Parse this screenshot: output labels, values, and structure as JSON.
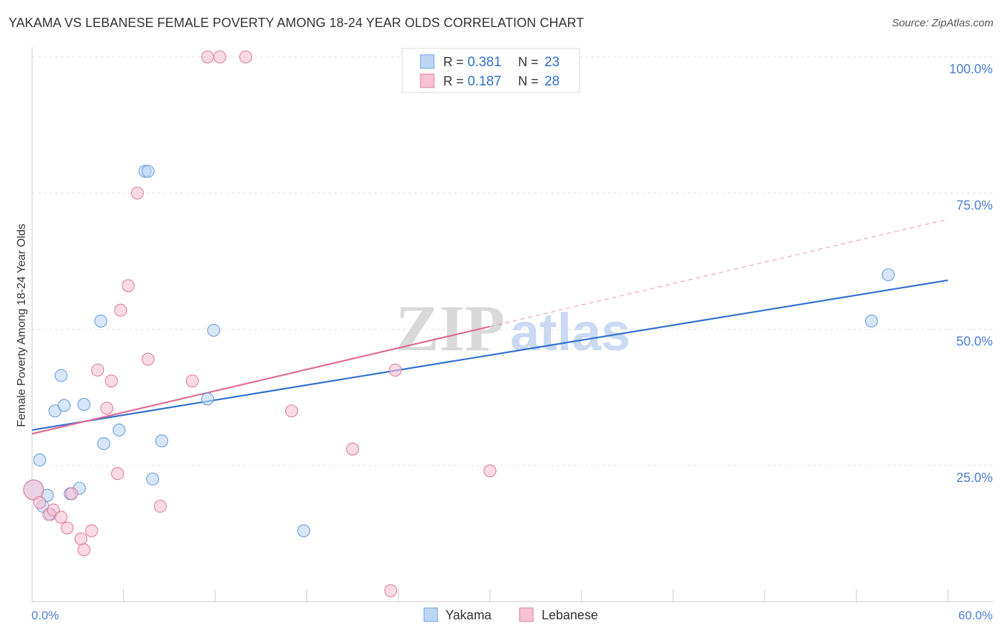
{
  "title": "YAKAMA VS LEBANESE FEMALE POVERTY AMONG 18-24 YEAR OLDS CORRELATION CHART",
  "source": "Source: ZipAtlas.com",
  "watermark": {
    "part1": "ZIP",
    "part2": "atlas"
  },
  "chart_data": {
    "type": "scatter",
    "title": "YAKAMA VS LEBANESE FEMALE POVERTY AMONG 18-24 YEAR OLDS CORRELATION CHART",
    "xlabel": "",
    "ylabel": "Female Poverty Among 18-24 Year Olds",
    "xlim": [
      0,
      60
    ],
    "ylim": [
      0,
      100
    ],
    "x_tick_labels": {
      "min": "0.0%",
      "max": "60.0%"
    },
    "y_ticks": [
      {
        "value": 25,
        "label": "25.0%"
      },
      {
        "value": 50,
        "label": "50.0%"
      },
      {
        "value": 75,
        "label": "75.0%"
      },
      {
        "value": 100,
        "label": "100.0%"
      }
    ],
    "grid": true,
    "legend": {
      "placement": "top-center",
      "r_label": "R =",
      "n_label": "N ="
    },
    "series": [
      {
        "name": "Yakama",
        "color": "#6a9fe0",
        "fill": "#bcd5f5",
        "line_color": "#2f6fd0",
        "R": "0.381",
        "N": "23",
        "trend": {
          "x0": 0,
          "y0": 31.5,
          "x1": 60,
          "y1": 59.0
        },
        "points": [
          [
            0.1,
            20.5
          ],
          [
            0.5,
            26.0
          ],
          [
            0.7,
            17.5
          ],
          [
            1.0,
            19.5
          ],
          [
            1.2,
            16.0
          ],
          [
            1.5,
            35.0
          ],
          [
            1.9,
            41.5
          ],
          [
            2.1,
            36.0
          ],
          [
            2.5,
            19.8
          ],
          [
            3.1,
            20.8
          ],
          [
            3.4,
            36.2
          ],
          [
            4.5,
            51.5
          ],
          [
            4.7,
            29.0
          ],
          [
            5.7,
            31.5
          ],
          [
            7.4,
            79.0
          ],
          [
            7.6,
            79.0
          ],
          [
            7.9,
            22.5
          ],
          [
            8.5,
            29.5
          ],
          [
            11.5,
            37.2
          ],
          [
            11.9,
            49.8
          ],
          [
            17.8,
            13.0
          ],
          [
            55.0,
            51.5
          ],
          [
            56.1,
            60.0
          ]
        ]
      },
      {
        "name": "Lebanese",
        "color": "#e07f9e",
        "fill": "#f7c2d3",
        "line_color": "#e06a94",
        "R": "0.187",
        "N": "28",
        "trend": {
          "x0": 0,
          "y0": 30.8,
          "x1": 30,
          "y1": 50.5,
          "dash_to_x": 60,
          "dash_to_y": 70.2
        },
        "points": [
          [
            0.1,
            20.5
          ],
          [
            0.5,
            18.2
          ],
          [
            1.1,
            16.0
          ],
          [
            1.4,
            16.8
          ],
          [
            1.9,
            15.5
          ],
          [
            2.3,
            13.5
          ],
          [
            2.6,
            19.8
          ],
          [
            3.2,
            11.5
          ],
          [
            3.4,
            9.5
          ],
          [
            3.9,
            13.0
          ],
          [
            4.3,
            42.5
          ],
          [
            4.9,
            35.5
          ],
          [
            5.2,
            40.5
          ],
          [
            5.6,
            23.5
          ],
          [
            5.8,
            53.5
          ],
          [
            6.3,
            58.0
          ],
          [
            6.9,
            75.0
          ],
          [
            7.6,
            44.5
          ],
          [
            8.4,
            17.5
          ],
          [
            10.5,
            40.5
          ],
          [
            11.5,
            100.0
          ],
          [
            12.3,
            100.0
          ],
          [
            14.0,
            100.0
          ],
          [
            17.0,
            35.0
          ],
          [
            21.0,
            28.0
          ],
          [
            23.5,
            2.0
          ],
          [
            23.8,
            42.5
          ],
          [
            30.0,
            24.0
          ]
        ]
      }
    ]
  }
}
